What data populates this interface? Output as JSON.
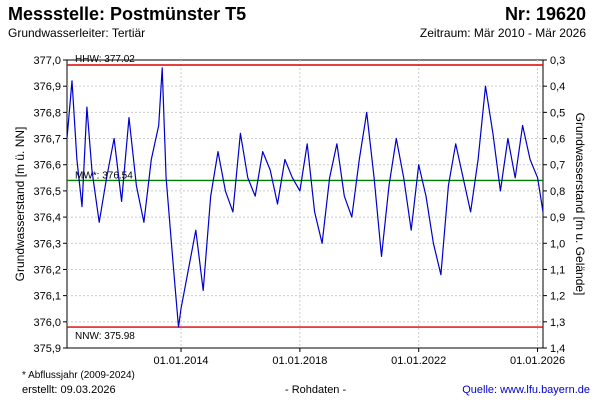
{
  "header": {
    "title": "Messstelle: Postmünster T5",
    "number": "Nr: 19620",
    "aquifer": "Grundwasserleiter: Tertiär",
    "period": "Zeitraum: Mär 2010 - Mär 2026"
  },
  "footer": {
    "footnote": "* Abflussjahr (2009-2024)",
    "created": "erstellt:  09.03.2026",
    "rohdaten": "- Rohdaten -",
    "source": "Quelle: www.lfu.bayern.de"
  },
  "colors": {
    "series": "#0000cc",
    "extremes": "#dd0000",
    "mean": "#008000",
    "grid": "#cccccc"
  },
  "chart_data": {
    "type": "line",
    "ylabel": "Grundwasserstand [m ü. NN]",
    "ylabel_right": "Grundwasserstand [m u. Gelände]",
    "ylim": [
      375.9,
      377.0
    ],
    "ylim_right": [
      0.3,
      1.4
    ],
    "yticks": [
      "377,0",
      "376,9",
      "376,8",
      "376,7",
      "376,6",
      "376,5",
      "376,4",
      "376,3",
      "376,2",
      "376,1",
      "376,0",
      "375,9"
    ],
    "yticks_right": [
      "0,3",
      "0,4",
      "0,5",
      "0,6",
      "0,7",
      "0,8",
      "0,9",
      "1,0",
      "1,1",
      "1,2",
      "1,3",
      "1,4"
    ],
    "xlim": [
      "2010-03-01",
      "2026-03-09"
    ],
    "xticks": [
      {
        "date": "2014-01-01",
        "label": "01.01.2014"
      },
      {
        "date": "2018-01-01",
        "label": "01.01.2018"
      },
      {
        "date": "2022-01-01",
        "label": "01.01.2022"
      },
      {
        "date": "2026-01-01",
        "label": "01.01.2026"
      }
    ],
    "grid": true,
    "reference_lines": [
      {
        "name": "HHW",
        "label": "HHW: 377.02",
        "value": 377.02
      },
      {
        "name": "MW",
        "label": "MW*: 376.54",
        "value": 376.54
      },
      {
        "name": "NNW",
        "label": "NNW: 375.98",
        "value": 375.98
      }
    ],
    "series": [
      {
        "x": [
          "2010-03-01",
          "2010-05-01",
          "2010-07-01",
          "2010-09-01",
          "2010-11-01",
          "2011-01-01",
          "2011-04-01",
          "2011-07-01",
          "2011-10-01",
          "2012-01-01",
          "2012-04-01",
          "2012-07-01",
          "2012-10-01",
          "2013-01-01",
          "2013-04-01",
          "2013-05-15",
          "2013-07-01",
          "2013-10-01",
          "2013-12-01",
          "2014-01-01",
          "2014-04-01",
          "2014-07-01",
          "2014-10-01",
          "2015-01-01",
          "2015-04-01",
          "2015-07-01",
          "2015-10-01",
          "2016-01-01",
          "2016-04-01",
          "2016-07-01",
          "2016-10-01",
          "2017-01-01",
          "2017-04-01",
          "2017-07-01",
          "2017-10-01",
          "2018-01-01",
          "2018-04-01",
          "2018-07-01",
          "2018-10-01",
          "2019-01-01",
          "2019-04-01",
          "2019-07-01",
          "2019-10-01",
          "2020-01-01",
          "2020-04-01",
          "2020-07-01",
          "2020-10-01",
          "2021-01-01",
          "2021-04-01",
          "2021-07-01",
          "2021-10-01",
          "2022-01-01",
          "2022-04-01",
          "2022-07-01",
          "2022-10-01",
          "2023-01-01",
          "2023-04-01",
          "2023-07-01",
          "2023-10-01",
          "2024-01-01",
          "2024-04-01",
          "2024-07-01",
          "2024-10-01",
          "2025-01-01",
          "2025-04-01",
          "2025-07-01",
          "2025-10-01",
          "2026-01-01",
          "2026-03-09"
        ],
        "values": [
          376.7,
          376.92,
          376.62,
          376.44,
          376.82,
          376.58,
          376.38,
          376.55,
          376.7,
          376.46,
          376.78,
          376.52,
          376.38,
          376.62,
          376.75,
          376.97,
          376.55,
          376.2,
          375.98,
          376.05,
          376.2,
          376.35,
          376.12,
          376.48,
          376.65,
          376.5,
          376.42,
          376.72,
          376.55,
          376.48,
          376.65,
          376.58,
          376.45,
          376.62,
          376.55,
          376.5,
          376.68,
          376.42,
          376.3,
          376.55,
          376.68,
          376.48,
          376.4,
          376.62,
          376.8,
          376.55,
          376.25,
          376.52,
          376.7,
          376.55,
          376.35,
          376.6,
          376.48,
          376.3,
          376.18,
          376.52,
          376.68,
          376.55,
          376.42,
          376.62,
          376.9,
          376.72,
          376.5,
          376.7,
          376.55,
          376.75,
          376.62,
          376.55,
          376.42
        ]
      }
    ]
  }
}
